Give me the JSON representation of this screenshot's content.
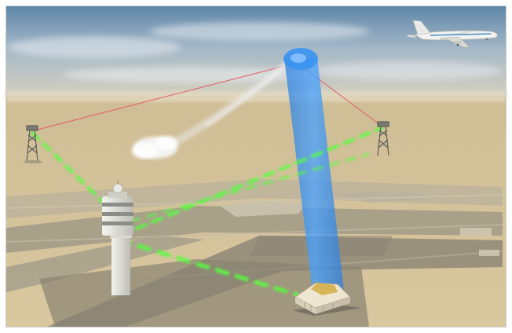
{
  "scene": {
    "description_visible_text": "",
    "colors": {
      "sky_top": "#5f86a8",
      "sky_mid": "#a9bccb",
      "haze": "#d9d2bd",
      "ground": "#d6c49a",
      "ground_far": "#cdbb93",
      "pavement": "#9c9889",
      "pavement_light": "#bdb6a3",
      "shadow": "#8c8574",
      "laser_green": "#4cff3a",
      "laser_red": "#e0606a",
      "beam_blue": "#2f8df0",
      "tower": "#e6e6e0",
      "building": "#efe6d2"
    },
    "icons": [
      "airplane-icon",
      "control-tower-icon",
      "lattice-mast-icon",
      "radar-building-icon",
      "smoke-plume-icon"
    ]
  }
}
